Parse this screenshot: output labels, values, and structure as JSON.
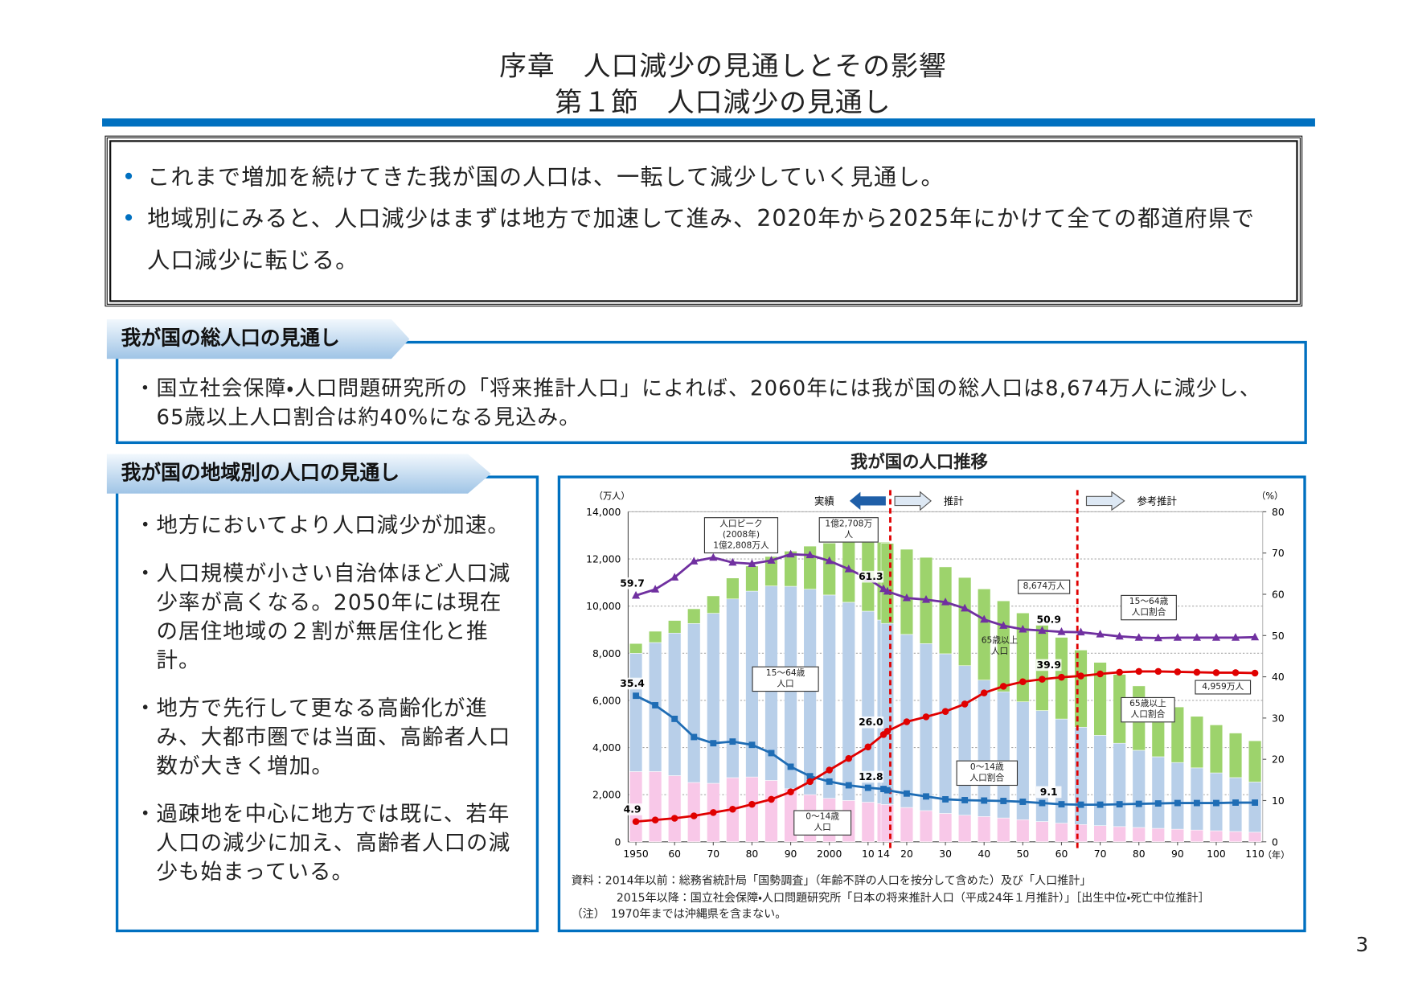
{
  "header": {
    "title": "序章　人口減少の見通しとその影響",
    "subtitle": "第１節　人口減少の見通し"
  },
  "summary": [
    "これまで増加を続けてきた我が国の人口は、一転して減少していく見通し。",
    "地域別にみると、人口減少はまずは地方で加速して進み、2020年から2025年にかけて全ての都道府県で人口減少に転じる。"
  ],
  "sections": [
    {
      "heading": "我が国の総人口の見通し",
      "bullets": [
        "国立社会保障・人口問題研究所の「将来推計人口」によれば、2060年には我が国の総人口は8,674万人に減少し、65歳以上人口割合は約40%になる見込み。"
      ]
    },
    {
      "heading": "我が国の地域別の人口の見通し",
      "bullets": [
        "地方においてより人口減少が加速。",
        "人口規模が小さい自治体ほど人口減少率が高くなる。2050年には現在の居住地域の２割が無居住化と推計。",
        "地方で先行して更なる高齢化が進み、大都市圏では当面、高齢者人口数が大きく増加。",
        "過疎地を中心に地方では既に、若年人口の減少に加え、高齢者人口の減少も始まっている。"
      ]
    }
  ],
  "chart_data": {
    "type": "bar",
    "title": "我が国の人口推移",
    "y_unit": "（万人）",
    "y2_unit": "（%）",
    "x_unit": "（年）",
    "phases": [
      "実績",
      "推計",
      "参考推計"
    ],
    "x": [
      1950,
      1955,
      1960,
      1965,
      1970,
      1975,
      1980,
      1985,
      1990,
      1995,
      2000,
      2005,
      2010,
      2014,
      2015,
      2020,
      2025,
      2030,
      2035,
      2040,
      2045,
      2050,
      2055,
      2060,
      2065,
      2070,
      2075,
      2080,
      2085,
      2090,
      2095,
      2100,
      2105,
      2110
    ],
    "xlim": [
      1948,
      2112
    ],
    "xticks": [
      1950,
      {
        "value": 1960,
        "label": "60"
      },
      {
        "value": 1970,
        "label": "70"
      },
      {
        "value": 1980,
        "label": "80"
      },
      {
        "value": 1990,
        "label": "90"
      },
      2000,
      {
        "value": 2010,
        "label": "10"
      },
      {
        "value": 2014,
        "label": "14"
      },
      {
        "value": 2020,
        "label": "20"
      },
      {
        "value": 2030,
        "label": "30"
      },
      {
        "value": 2040,
        "label": "40"
      },
      {
        "value": 2050,
        "label": "50"
      },
      {
        "value": 2060,
        "label": "60"
      },
      {
        "value": 2070,
        "label": "70"
      },
      {
        "value": 2080,
        "label": "80"
      },
      {
        "value": 2090,
        "label": "90"
      },
      {
        "value": 2100,
        "label": "100"
      },
      {
        "value": 2110,
        "label": "110"
      }
    ],
    "ylim": [
      0,
      14000
    ],
    "yticks": [
      0,
      {
        "value": 2000,
        "label": "2,000"
      },
      {
        "value": 4000,
        "label": "4,000"
      },
      {
        "value": 6000,
        "label": "6,000"
      },
      {
        "value": 8000,
        "label": "8,000"
      },
      {
        "value": 10000,
        "label": "10,000"
      },
      {
        "value": 12000,
        "label": "12,000"
      },
      {
        "value": 14000,
        "label": "14,000"
      }
    ],
    "y2lim": [
      0,
      80
    ],
    "y2ticks": [
      0,
      10,
      20,
      30,
      40,
      50,
      60,
      70,
      80
    ],
    "grid": true,
    "series": [
      {
        "name": "0～14歳\n人口",
        "color": "#f8c8e8",
        "values": [
          2979,
          2980,
          2807,
          2517,
          2482,
          2722,
          2751,
          2603,
          2249,
          2001,
          1847,
          1752,
          1680,
          1623,
          1583,
          1457,
          1324,
          1204,
          1129,
          1073,
          1012,
          939,
          861,
          791,
          733,
          686,
          646,
          608,
          571,
          535,
          499,
          468,
          438,
          407
        ]
      },
      {
        "name": "15～64歳\n人口",
        "color": "#b8cfe9",
        "values": [
          5017,
          5473,
          6047,
          6744,
          7212,
          7581,
          7883,
          8251,
          8590,
          8716,
          8622,
          8409,
          8103,
          7785,
          7682,
          7341,
          7085,
          6773,
          6343,
          5787,
          5353,
          5001,
          4706,
          4418,
          4129,
          3830,
          3536,
          3275,
          3038,
          2830,
          2637,
          2456,
          2286,
          2128
        ]
      },
      {
        "name": "65歳以上\n人口",
        "color": "#9dd36c",
        "values": [
          416,
          479,
          535,
          624,
          739,
          887,
          1065,
          1247,
          1489,
          1826,
          2204,
          2576,
          2925,
          3300,
          3395,
          3612,
          3657,
          3685,
          3741,
          3868,
          3856,
          3768,
          3626,
          3464,
          3273,
          3096,
          2920,
          2731,
          2537,
          2355,
          2187,
          2035,
          1890,
          1751
        ]
      },
      {
        "name": "0～14歳\n人口割合",
        "color": "#1f6db5",
        "axis": "y2",
        "values": [
          35.4,
          33.1,
          29.8,
          25.4,
          23.9,
          24.3,
          23.5,
          21.5,
          18.2,
          15.9,
          14.6,
          13.7,
          13.1,
          12.8,
          12.5,
          11.7,
          11.0,
          10.3,
          10.1,
          10.0,
          9.9,
          9.7,
          9.4,
          9.1,
          9.0,
          9.0,
          9.1,
          9.2,
          9.3,
          9.4,
          9.4,
          9.4,
          9.5,
          9.5
        ],
        "value_labels": [
          "35.4",
          null,
          null,
          null,
          null,
          null,
          null,
          null,
          null,
          null,
          null,
          null,
          null,
          "12.8",
          null,
          null,
          null,
          null,
          null,
          null,
          null,
          null,
          null,
          "9.1",
          null,
          null,
          null,
          null,
          null,
          null,
          null,
          null,
          null,
          null
        ]
      },
      {
        "name": "15～64歳\n人口割合",
        "color": "#7030a0",
        "axis": "y2",
        "values": [
          59.7,
          61.2,
          64.1,
          68.0,
          68.9,
          67.7,
          67.4,
          68.2,
          69.7,
          69.5,
          68.1,
          66.1,
          63.8,
          61.3,
          60.7,
          59.1,
          58.7,
          58.1,
          56.6,
          53.9,
          52.4,
          51.5,
          51.2,
          50.9,
          50.8,
          50.3,
          49.8,
          49.5,
          49.4,
          49.5,
          49.5,
          49.5,
          49.5,
          49.6
        ],
        "value_labels": [
          "59.7",
          null,
          null,
          null,
          null,
          null,
          null,
          null,
          null,
          null,
          null,
          null,
          null,
          "61.3",
          null,
          null,
          null,
          null,
          null,
          null,
          null,
          null,
          null,
          "50.9",
          null,
          null,
          null,
          null,
          null,
          null,
          null,
          null,
          null,
          null
        ]
      },
      {
        "name": "65歳以上\n人口割合",
        "color": "#e00000",
        "axis": "y2",
        "values": [
          4.9,
          5.3,
          5.7,
          6.3,
          7.1,
          7.9,
          9.1,
          10.3,
          12.1,
          14.6,
          17.4,
          20.2,
          23.0,
          26.0,
          26.8,
          29.1,
          30.3,
          31.6,
          33.4,
          36.1,
          37.7,
          38.8,
          39.4,
          39.9,
          40.2,
          40.7,
          41.1,
          41.3,
          41.3,
          41.2,
          41.1,
          41.0,
          41.0,
          40.9
        ],
        "value_labels": [
          "4.9",
          null,
          null,
          null,
          null,
          null,
          null,
          null,
          null,
          null,
          null,
          null,
          null,
          "26.0",
          null,
          null,
          null,
          null,
          null,
          null,
          null,
          null,
          null,
          "39.9",
          null,
          null,
          null,
          null,
          null,
          null,
          null,
          null,
          null,
          null
        ]
      }
    ],
    "annotations": [
      "人口ピーク(2008年)\n1億2,808万人",
      "1億2,708万人",
      "8,674万人",
      "4,959万人"
    ],
    "source": [
      "資料：2014年以前：総務省統計局「国勢調査」（年齢不詳の人口を按分して含めた）及び「人口推計」",
      "　　　　2015年以降：国立社会保障・人口問題研究所「日本の将来推計人口（平成24年１月推計）」［出生中位・死亡中位推計］",
      "（注）　1970年までは沖縄県を含まない。"
    ]
  },
  "page_number": 3
}
